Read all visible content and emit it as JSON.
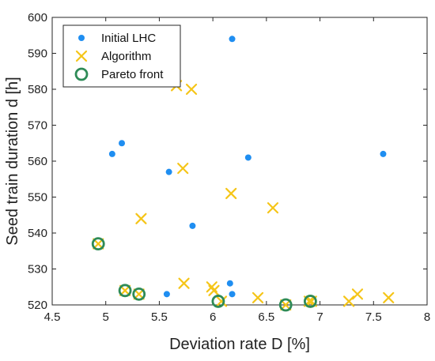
{
  "chart_data": {
    "type": "scatter",
    "xlabel": "Deviation rate  D [%]",
    "ylabel": "Seed train duration  d [h]",
    "xlim": [
      4.5,
      8
    ],
    "ylim": [
      520,
      600
    ],
    "xticks": [
      "4.5",
      "5",
      "5.5",
      "6",
      "6.5",
      "7",
      "7.5",
      "8"
    ],
    "yticks": [
      "520",
      "530",
      "540",
      "550",
      "560",
      "570",
      "580",
      "590",
      "600"
    ],
    "grid": false,
    "legend_position": "top-left",
    "series": [
      {
        "name": "Initial LHC",
        "marker": "dot",
        "color": "#1f8ef1",
        "points": [
          [
            6.18,
            594
          ],
          [
            5.15,
            565
          ],
          [
            5.06,
            562
          ],
          [
            6.33,
            561
          ],
          [
            7.59,
            562
          ],
          [
            5.59,
            557
          ],
          [
            5.81,
            542
          ],
          [
            6.16,
            526
          ],
          [
            6.18,
            523
          ],
          [
            5.57,
            523
          ]
        ]
      },
      {
        "name": "Algorithm",
        "marker": "x",
        "color": "#f5c518",
        "points": [
          [
            5.66,
            581
          ],
          [
            5.8,
            580
          ],
          [
            5.72,
            558
          ],
          [
            6.17,
            551
          ],
          [
            6.56,
            547
          ],
          [
            5.33,
            544
          ],
          [
            4.93,
            537
          ],
          [
            5.73,
            526
          ],
          [
            5.99,
            525
          ],
          [
            6.01,
            524
          ],
          [
            5.18,
            524
          ],
          [
            5.31,
            523
          ],
          [
            6.42,
            522
          ],
          [
            6.08,
            521
          ],
          [
            6.68,
            520
          ],
          [
            6.9,
            521
          ],
          [
            6.92,
            521
          ],
          [
            7.27,
            521
          ],
          [
            7.35,
            523
          ],
          [
            7.64,
            522
          ]
        ]
      },
      {
        "name": "Pareto front",
        "marker": "circle",
        "color": "#2e8b57",
        "points": [
          [
            4.93,
            537
          ],
          [
            5.18,
            524
          ],
          [
            5.31,
            523
          ],
          [
            6.05,
            521
          ],
          [
            6.68,
            520
          ],
          [
            6.91,
            521
          ]
        ]
      }
    ]
  }
}
